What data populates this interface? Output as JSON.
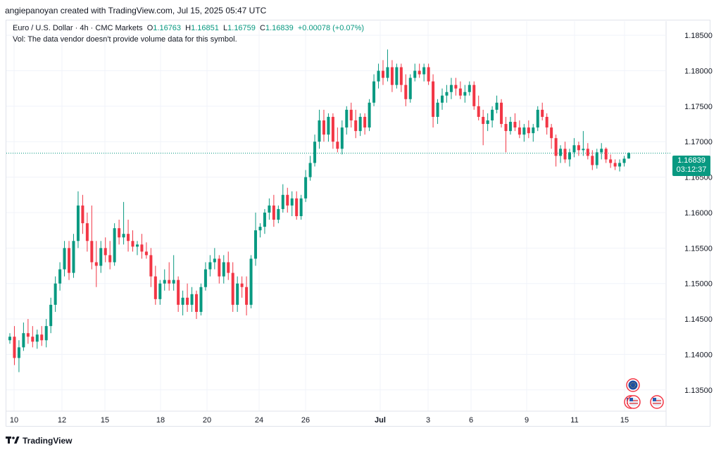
{
  "header": {
    "text": "angiepanoyan created with TradingView.com, Jul 15, 2025 05:47 UTC"
  },
  "legend": {
    "symbol": "Euro / U.S. Dollar · 4h · CMC Markets",
    "o_label": "O",
    "o_value": "1.16763",
    "h_label": "H",
    "h_value": "1.16851",
    "l_label": "L",
    "l_value": "1.16759",
    "c_label": "C",
    "c_value": "1.16839",
    "change": "+0.00078 (+0.07%)",
    "vol_note": "Vol: The data vendor doesn't provide volume data for this symbol."
  },
  "price_badge": {
    "price": "1.16839",
    "countdown": "03:12:37"
  },
  "footer": {
    "brand": "TradingView"
  },
  "colors": {
    "up": "#089981",
    "down": "#f23645",
    "grid": "#f0f3fa",
    "text": "#131722"
  },
  "chart_data": {
    "type": "candlestick",
    "y_ticks": [
      "1.18500",
      "1.18000",
      "1.17500",
      "1.17000",
      "1.16500",
      "1.16000",
      "1.15500",
      "1.15000",
      "1.14500",
      "1.14000",
      "1.13500"
    ],
    "ylim": [
      1.132,
      1.187
    ],
    "x_ticks": [
      "10",
      "12",
      "15",
      "18",
      "20",
      "24",
      "26",
      "Jul",
      "3",
      "6",
      "9",
      "11",
      "15"
    ],
    "last_price": 1.16839,
    "candles": [
      [
        1.142,
        1.143,
        1.1415,
        1.1425
      ],
      [
        1.1425,
        1.144,
        1.1385,
        1.1395
      ],
      [
        1.1395,
        1.142,
        1.1375,
        1.141
      ],
      [
        1.141,
        1.1445,
        1.1405,
        1.143
      ],
      [
        1.143,
        1.145,
        1.1415,
        1.1425
      ],
      [
        1.1425,
        1.144,
        1.141,
        1.1418
      ],
      [
        1.1418,
        1.1435,
        1.1408,
        1.1428
      ],
      [
        1.1428,
        1.144,
        1.1412,
        1.142
      ],
      [
        1.142,
        1.145,
        1.141,
        1.144
      ],
      [
        1.144,
        1.148,
        1.143,
        1.147
      ],
      [
        1.147,
        1.151,
        1.146,
        1.15
      ],
      [
        1.15,
        1.153,
        1.149,
        1.152
      ],
      [
        1.152,
        1.156,
        1.151,
        1.155
      ],
      [
        1.155,
        1.156,
        1.1505,
        1.1515
      ],
      [
        1.1515,
        1.157,
        1.1508,
        1.156
      ],
      [
        1.156,
        1.163,
        1.155,
        1.161
      ],
      [
        1.161,
        1.1625,
        1.157,
        1.1585
      ],
      [
        1.1585,
        1.16,
        1.1545,
        1.156
      ],
      [
        1.156,
        1.161,
        1.152,
        1.153
      ],
      [
        1.153,
        1.156,
        1.1495,
        1.1525
      ],
      [
        1.1525,
        1.156,
        1.1515,
        1.155
      ],
      [
        1.155,
        1.1565,
        1.153,
        1.154
      ],
      [
        1.154,
        1.156,
        1.152,
        1.153
      ],
      [
        1.153,
        1.1585,
        1.1525,
        1.1578
      ],
      [
        1.1578,
        1.159,
        1.1555,
        1.1565
      ],
      [
        1.1565,
        1.1615,
        1.1555,
        1.157
      ],
      [
        1.157,
        1.159,
        1.1545,
        1.156
      ],
      [
        1.156,
        1.1575,
        1.1545,
        1.1552
      ],
      [
        1.1552,
        1.156,
        1.154,
        1.1555
      ],
      [
        1.1555,
        1.157,
        1.1535,
        1.1545
      ],
      [
        1.1545,
        1.1558,
        1.1535,
        1.154
      ],
      [
        1.154,
        1.155,
        1.1495,
        1.151
      ],
      [
        1.151,
        1.1525,
        1.147,
        1.1478
      ],
      [
        1.1478,
        1.1505,
        1.147,
        1.15
      ],
      [
        1.15,
        1.152,
        1.149,
        1.1505
      ],
      [
        1.1505,
        1.153,
        1.149,
        1.15
      ],
      [
        1.15,
        1.154,
        1.149,
        1.1505
      ],
      [
        1.1505,
        1.151,
        1.146,
        1.147
      ],
      [
        1.147,
        1.149,
        1.1455,
        1.148
      ],
      [
        1.148,
        1.15,
        1.146,
        1.147
      ],
      [
        1.147,
        1.1495,
        1.146,
        1.1485
      ],
      [
        1.1485,
        1.149,
        1.145,
        1.146
      ],
      [
        1.146,
        1.15,
        1.1455,
        1.1495
      ],
      [
        1.1495,
        1.153,
        1.149,
        1.152
      ],
      [
        1.152,
        1.154,
        1.151,
        1.153
      ],
      [
        1.153,
        1.155,
        1.152,
        1.1535
      ],
      [
        1.1535,
        1.154,
        1.15,
        1.151
      ],
      [
        1.151,
        1.154,
        1.15,
        1.153
      ],
      [
        1.153,
        1.1545,
        1.1505,
        1.1515
      ],
      [
        1.1515,
        1.153,
        1.146,
        1.147
      ],
      [
        1.147,
        1.151,
        1.146,
        1.15
      ],
      [
        1.15,
        1.151,
        1.148,
        1.1495
      ],
      [
        1.1495,
        1.151,
        1.1455,
        1.147
      ],
      [
        1.147,
        1.154,
        1.1465,
        1.1535
      ],
      [
        1.1535,
        1.16,
        1.1525,
        1.1575
      ],
      [
        1.1575,
        1.1585,
        1.1565,
        1.158
      ],
      [
        1.158,
        1.1605,
        1.157,
        1.16
      ],
      [
        1.16,
        1.162,
        1.159,
        1.161
      ],
      [
        1.161,
        1.1625,
        1.158,
        1.159
      ],
      [
        1.159,
        1.161,
        1.1585,
        1.1605
      ],
      [
        1.1605,
        1.164,
        1.16,
        1.1625
      ],
      [
        1.1625,
        1.1635,
        1.16,
        1.161
      ],
      [
        1.161,
        1.163,
        1.1595,
        1.162
      ],
      [
        1.162,
        1.163,
        1.159,
        1.1595
      ],
      [
        1.1595,
        1.1625,
        1.159,
        1.162
      ],
      [
        1.162,
        1.166,
        1.1615,
        1.165
      ],
      [
        1.165,
        1.168,
        1.1645,
        1.167
      ],
      [
        1.167,
        1.171,
        1.1665,
        1.17
      ],
      [
        1.17,
        1.1745,
        1.169,
        1.173
      ],
      [
        1.173,
        1.1745,
        1.17,
        1.171
      ],
      [
        1.171,
        1.174,
        1.17,
        1.1735
      ],
      [
        1.1735,
        1.174,
        1.169,
        1.17
      ],
      [
        1.17,
        1.172,
        1.1685,
        1.169
      ],
      [
        1.169,
        1.173,
        1.1682,
        1.172
      ],
      [
        1.172,
        1.175,
        1.171,
        1.1745
      ],
      [
        1.1745,
        1.1755,
        1.172,
        1.173
      ],
      [
        1.173,
        1.1745,
        1.1705,
        1.1715
      ],
      [
        1.1715,
        1.174,
        1.1708,
        1.1735
      ],
      [
        1.1735,
        1.174,
        1.171,
        1.172
      ],
      [
        1.172,
        1.176,
        1.1715,
        1.1755
      ],
      [
        1.1755,
        1.1795,
        1.175,
        1.1785
      ],
      [
        1.1785,
        1.181,
        1.1775,
        1.18
      ],
      [
        1.18,
        1.1815,
        1.178,
        1.179
      ],
      [
        1.179,
        1.183,
        1.1785,
        1.1805
      ],
      [
        1.1805,
        1.1815,
        1.177,
        1.178
      ],
      [
        1.178,
        1.181,
        1.1775,
        1.1805
      ],
      [
        1.1805,
        1.181,
        1.177,
        1.178
      ],
      [
        1.178,
        1.1795,
        1.175,
        1.176
      ],
      [
        1.176,
        1.1795,
        1.1755,
        1.179
      ],
      [
        1.179,
        1.181,
        1.1785,
        1.18
      ],
      [
        1.18,
        1.181,
        1.179,
        1.1795
      ],
      [
        1.1795,
        1.181,
        1.1785,
        1.1805
      ],
      [
        1.1805,
        1.181,
        1.178,
        1.1785
      ],
      [
        1.1785,
        1.1795,
        1.172,
        1.1735
      ],
      [
        1.1735,
        1.176,
        1.1725,
        1.1755
      ],
      [
        1.1755,
        1.1775,
        1.1745,
        1.1765
      ],
      [
        1.1765,
        1.178,
        1.1755,
        1.177
      ],
      [
        1.177,
        1.179,
        1.176,
        1.178
      ],
      [
        1.178,
        1.179,
        1.1765,
        1.1775
      ],
      [
        1.1775,
        1.1785,
        1.176,
        1.1765
      ],
      [
        1.1765,
        1.178,
        1.1755,
        1.177
      ],
      [
        1.177,
        1.1785,
        1.1765,
        1.178
      ],
      [
        1.178,
        1.1785,
        1.1745,
        1.175
      ],
      [
        1.175,
        1.1765,
        1.173,
        1.1735
      ],
      [
        1.1735,
        1.1745,
        1.1695,
        1.1725
      ],
      [
        1.1725,
        1.174,
        1.1715,
        1.173
      ],
      [
        1.173,
        1.175,
        1.172,
        1.1745
      ],
      [
        1.1745,
        1.1765,
        1.174,
        1.1755
      ],
      [
        1.1755,
        1.176,
        1.172,
        1.1725
      ],
      [
        1.1725,
        1.1735,
        1.1685,
        1.1715
      ],
      [
        1.1715,
        1.1735,
        1.171,
        1.1728
      ],
      [
        1.1728,
        1.174,
        1.1715,
        1.172
      ],
      [
        1.172,
        1.173,
        1.1705,
        1.171
      ],
      [
        1.171,
        1.1725,
        1.17,
        1.172
      ],
      [
        1.172,
        1.173,
        1.1705,
        1.1712
      ],
      [
        1.1712,
        1.1725,
        1.17,
        1.172
      ],
      [
        1.172,
        1.175,
        1.1715,
        1.1745
      ],
      [
        1.1745,
        1.1755,
        1.173,
        1.1735
      ],
      [
        1.1735,
        1.174,
        1.171,
        1.172
      ],
      [
        1.172,
        1.1725,
        1.169,
        1.1705
      ],
      [
        1.1705,
        1.171,
        1.1665,
        1.168
      ],
      [
        1.168,
        1.1695,
        1.167,
        1.169
      ],
      [
        1.169,
        1.17,
        1.167,
        1.1675
      ],
      [
        1.1675,
        1.169,
        1.1665,
        1.1685
      ],
      [
        1.1685,
        1.1705,
        1.1678,
        1.1695
      ],
      [
        1.1695,
        1.17,
        1.168,
        1.1688
      ],
      [
        1.1688,
        1.1715,
        1.168,
        1.169
      ],
      [
        1.169,
        1.1698,
        1.1675,
        1.168
      ],
      [
        1.168,
        1.1688,
        1.166,
        1.1667
      ],
      [
        1.1667,
        1.169,
        1.1662,
        1.1685
      ],
      [
        1.1685,
        1.1698,
        1.1675,
        1.169
      ],
      [
        1.169,
        1.1692,
        1.167,
        1.1675
      ],
      [
        1.1675,
        1.1682,
        1.1663,
        1.167
      ],
      [
        1.167,
        1.1675,
        1.166,
        1.1665
      ],
      [
        1.1665,
        1.1675,
        1.1658,
        1.167
      ],
      [
        1.167,
        1.168,
        1.1665,
        1.1676
      ],
      [
        1.16763,
        1.16851,
        1.16759,
        1.16839
      ]
    ]
  }
}
